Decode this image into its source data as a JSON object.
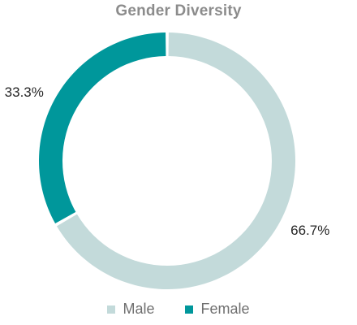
{
  "chart_data": {
    "type": "pie",
    "donut": true,
    "title": "Gender Diversity",
    "slices": [
      {
        "name": "Male",
        "value": 66.7,
        "label": "66.7%",
        "color": "#c3dada"
      },
      {
        "name": "Female",
        "value": 33.3,
        "label": "33.3%",
        "color": "#00979b"
      }
    ],
    "legend_position": "bottom"
  }
}
